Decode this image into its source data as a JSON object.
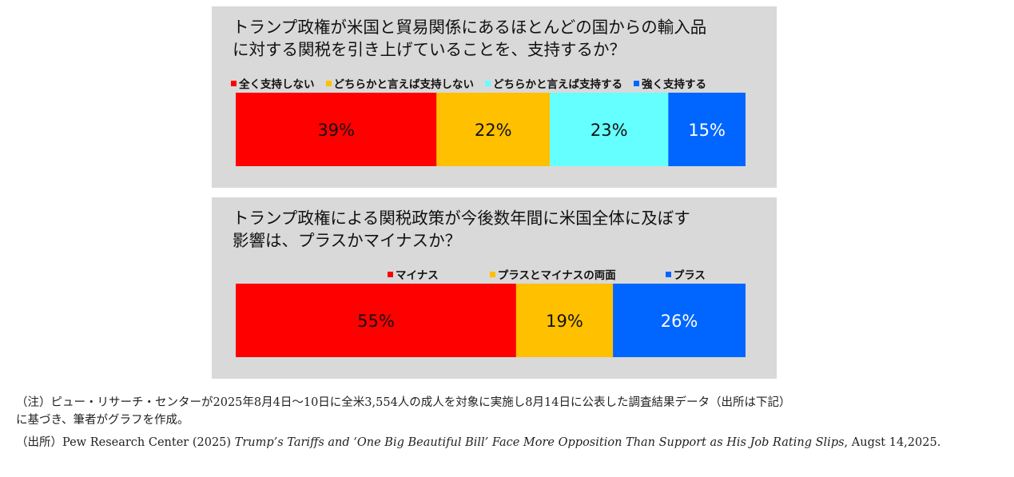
{
  "chart_data": [
    {
      "type": "bar",
      "orientation": "horizontal-stacked",
      "title": "トランプ政権が米国と貿易関係にあるほとんどの国からの輸入品に対する関税を引き上げていることを、支持するか？",
      "title_lines": [
        "トランプ政権が米国と貿易関係にあるほとんどの国からの輸入品",
        "に対する関税を引き上げていることを、支持するか？"
      ],
      "unit": "%",
      "series": [
        {
          "name": "全く支持しない",
          "value": 39,
          "label": "39%",
          "color": "#ff0000",
          "label_color": "#111111"
        },
        {
          "name": "どちらかと言えば支持しない",
          "value": 22,
          "label": "22%",
          "color": "#ffc000",
          "label_color": "#111111"
        },
        {
          "name": "どちらかと言えば支持する",
          "value": 23,
          "label": "23%",
          "color": "#66ffff",
          "label_color": "#111111"
        },
        {
          "name": "強く支持する",
          "value": 15,
          "label": "15%",
          "color": "#0066ff",
          "label_color": "#ffffff"
        }
      ],
      "legend": "top"
    },
    {
      "type": "bar",
      "orientation": "horizontal-stacked",
      "title": "トランプ政権による関税政策が今後数年間に米国全体に及ぼす影響は、プラスかマイナスか？",
      "title_lines": [
        "トランプ政権による関税政策が今後数年間に米国全体に及ぼす",
        "影響は、プラスかマイナスか？"
      ],
      "unit": "%",
      "series": [
        {
          "name": "マイナス",
          "value": 55,
          "label": "55%",
          "color": "#ff0000",
          "label_color": "#111111"
        },
        {
          "name": "プラスとマイナスの両面",
          "value": 19,
          "label": "19%",
          "color": "#ffc000",
          "label_color": "#111111"
        },
        {
          "name": "プラス",
          "value": 26,
          "label": "26%",
          "color": "#0066ff",
          "label_color": "#ffffff"
        }
      ],
      "legend": "top"
    }
  ],
  "note": {
    "line1": "（注）ピュー・リサーチ・センターが2025年8月4日～10日に全米3,554人の成人を対象に実施し8月14日に公表した調査結果データ（出所は下記）",
    "line2": "に基づき、筆者がグラフを作成。",
    "source_prefix": "（出所）Pew Research Center (2025) ",
    "source_title": "Trump’s Tariffs and ‘One Big Beautiful Bill’ Face More Opposition Than Support as His Job Rating Slips",
    "source_suffix": ", Augst 14,2025."
  }
}
